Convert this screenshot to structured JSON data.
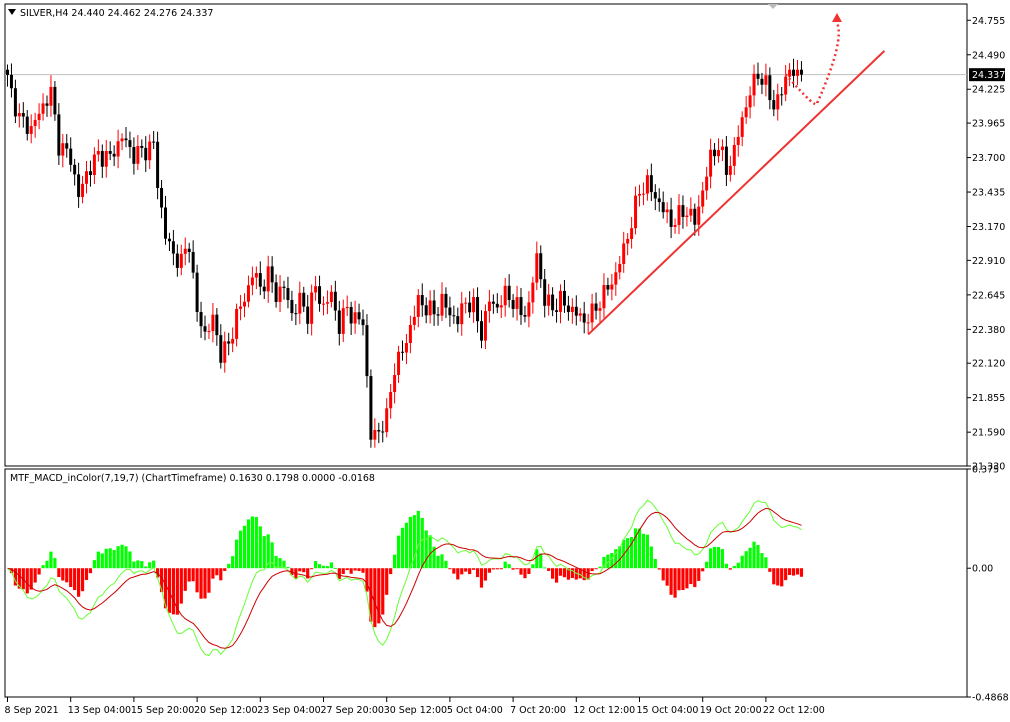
{
  "header": {
    "symbol_info": "SILVER,H4  24.440 24.462 24.276 24.337"
  },
  "indicator": {
    "label": "MTF_MACD_inColor(7,19,7) (ChartTimeframe) 0.1630 0.1798 0.0000 -0.0168"
  },
  "colors": {
    "bull": "#ff0000",
    "bear": "#000000",
    "hist_up": "#00ff00",
    "hist_down": "#ff0000",
    "macd_line": "#66ff33",
    "signal_line": "#cc0000",
    "trendline": "#ee3333",
    "arrow": "#ee3333"
  },
  "chart_data": [
    {
      "type": "candlestick",
      "title": "SILVER,H4",
      "ylim": [
        21.33,
        24.88
      ],
      "y_ticks": [
        "24.755",
        "24.490",
        "24.225",
        "23.965",
        "23.700",
        "23.435",
        "23.170",
        "22.910",
        "22.645",
        "22.380",
        "22.120",
        "21.855",
        "21.590",
        "21.330"
      ],
      "current_price": "24.337",
      "anchors": [
        [
          0,
          24.3
        ],
        [
          3,
          24.0
        ],
        [
          6,
          23.92
        ],
        [
          9,
          24.1
        ],
        [
          11,
          24.2
        ],
        [
          13,
          23.8
        ],
        [
          16,
          23.7
        ],
        [
          18,
          23.4
        ],
        [
          20,
          23.58
        ],
        [
          23,
          23.72
        ],
        [
          26,
          23.7
        ],
        [
          29,
          23.86
        ],
        [
          32,
          23.72
        ],
        [
          35,
          23.76
        ],
        [
          37,
          23.8
        ],
        [
          38,
          23.5
        ],
        [
          40,
          23.1
        ],
        [
          42,
          22.95
        ],
        [
          44,
          22.9
        ],
        [
          46,
          23.05
        ],
        [
          48,
          22.5
        ],
        [
          50,
          22.35
        ],
        [
          52,
          22.45
        ],
        [
          54,
          22.2
        ],
        [
          56,
          22.25
        ],
        [
          58,
          22.5
        ],
        [
          60,
          22.6
        ],
        [
          62,
          22.82
        ],
        [
          64,
          22.7
        ],
        [
          66,
          22.8
        ],
        [
          68,
          22.65
        ],
        [
          70,
          22.7
        ],
        [
          72,
          22.5
        ],
        [
          74,
          22.6
        ],
        [
          76,
          22.5
        ],
        [
          78,
          22.7
        ],
        [
          80,
          22.55
        ],
        [
          82,
          22.65
        ],
        [
          84,
          22.4
        ],
        [
          86,
          22.55
        ],
        [
          88,
          22.45
        ],
        [
          90,
          22.45
        ],
        [
          92,
          21.55
        ],
        [
          94,
          21.6
        ],
        [
          96,
          21.7
        ],
        [
          98,
          22.1
        ],
        [
          100,
          22.2
        ],
        [
          102,
          22.4
        ],
        [
          104,
          22.6
        ],
        [
          106,
          22.55
        ],
        [
          108,
          22.5
        ],
        [
          110,
          22.6
        ],
        [
          112,
          22.5
        ],
        [
          114,
          22.45
        ],
        [
          116,
          22.6
        ],
        [
          118,
          22.55
        ],
        [
          120,
          22.35
        ],
        [
          122,
          22.6
        ],
        [
          124,
          22.55
        ],
        [
          126,
          22.65
        ],
        [
          128,
          22.6
        ],
        [
          130,
          22.5
        ],
        [
          132,
          22.55
        ],
        [
          134,
          22.95
        ],
        [
          136,
          22.6
        ],
        [
          138,
          22.55
        ],
        [
          140,
          22.6
        ],
        [
          142,
          22.55
        ],
        [
          144,
          22.5
        ],
        [
          146,
          22.45
        ],
        [
          148,
          22.5
        ],
        [
          150,
          22.6
        ],
        [
          152,
          22.7
        ],
        [
          154,
          22.8
        ],
        [
          156,
          23.0
        ],
        [
          158,
          23.2
        ],
        [
          160,
          23.45
        ],
        [
          162,
          23.5
        ],
        [
          164,
          23.4
        ],
        [
          166,
          23.3
        ],
        [
          168,
          23.2
        ],
        [
          170,
          23.25
        ],
        [
          172,
          23.3
        ],
        [
          174,
          23.2
        ],
        [
          176,
          23.45
        ],
        [
          178,
          23.7
        ],
        [
          180,
          23.8
        ],
        [
          182,
          23.6
        ],
        [
          184,
          23.75
        ],
        [
          186,
          24.0
        ],
        [
          188,
          24.2
        ],
        [
          190,
          24.35
        ],
        [
          192,
          24.25
        ],
        [
          194,
          24.1
        ],
        [
          196,
          24.2
        ],
        [
          198,
          24.4
        ],
        [
          200,
          24.3
        ],
        [
          201,
          24.337
        ]
      ],
      "x_labels": [
        {
          "bar": 0,
          "text": "8 Sep 2021"
        },
        {
          "bar": 16,
          "text": "13 Sep 04:00"
        },
        {
          "bar": 32,
          "text": "15 Sep 20:00"
        },
        {
          "bar": 48,
          "text": "20 Sep 12:00"
        },
        {
          "bar": 64,
          "text": "23 Sep 04:00"
        },
        {
          "bar": 80,
          "text": "27 Sep 20:00"
        },
        {
          "bar": 96,
          "text": "30 Sep 12:00"
        },
        {
          "bar": 112,
          "text": "5 Oct 04:00"
        },
        {
          "bar": 128,
          "text": "7 Oct 20:00"
        },
        {
          "bar": 144,
          "text": "12 Oct 12:00"
        },
        {
          "bar": 160,
          "text": "15 Oct 04:00"
        },
        {
          "bar": 176,
          "text": "19 Oct 20:00"
        },
        {
          "bar": 192,
          "text": "22 Oct 12:00"
        }
      ],
      "trendline": {
        "from": [
          147,
          22.34
        ],
        "to": [
          222,
          24.52
        ]
      },
      "projection": [
        [
          197,
          24.34
        ],
        [
          205,
          24.12
        ],
        [
          212,
          24.6
        ],
        [
          210,
          24.78
        ]
      ]
    },
    {
      "type": "macd_histogram",
      "title": "MTF_MACD_inColor(7,19,7)",
      "ylim": [
        -0.4868,
        0.375
      ],
      "y_ticks": [
        "0.375",
        "0.00",
        "-0.4868"
      ],
      "values": {
        "macd": 0.163,
        "signal": 0.1798,
        "hist_up": 0.0,
        "hist_down": -0.0168
      }
    }
  ]
}
